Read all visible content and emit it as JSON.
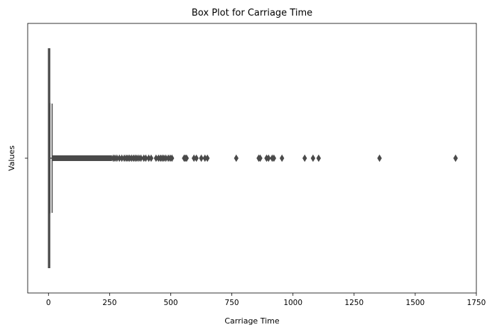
{
  "chart_data": {
    "type": "box",
    "orientation": "horizontal",
    "title": "Box Plot for Carriage Time",
    "xlabel": "Carriage Time",
    "ylabel": "Values",
    "xlim": [
      -85,
      1750
    ],
    "xticks": [
      0,
      250,
      500,
      750,
      1000,
      1250,
      1500,
      1750
    ],
    "xtick_labels": [
      "0",
      "250",
      "500",
      "750",
      "1000",
      "1250",
      "1500",
      "1750"
    ],
    "yticks": [
      ""
    ],
    "grid": false,
    "colors": {
      "box_fill": "#3a78b5",
      "line": "#4a4a4a"
    },
    "box": {
      "q1": 1,
      "median": 3,
      "q3": 6,
      "whisker_low": 0,
      "whisker_high": 15
    },
    "outliers_dense_range": [
      16,
      260
    ],
    "outliers": [
      265,
      272,
      280,
      290,
      300,
      310,
      318,
      325,
      332,
      340,
      348,
      355,
      362,
      370,
      378,
      390,
      398,
      410,
      420,
      440,
      450,
      458,
      465,
      472,
      480,
      490,
      498,
      505,
      555,
      560,
      565,
      595,
      605,
      625,
      640,
      650,
      768,
      860,
      866,
      892,
      900,
      915,
      922,
      955,
      1048,
      1082,
      1105,
      1354,
      1665
    ]
  }
}
